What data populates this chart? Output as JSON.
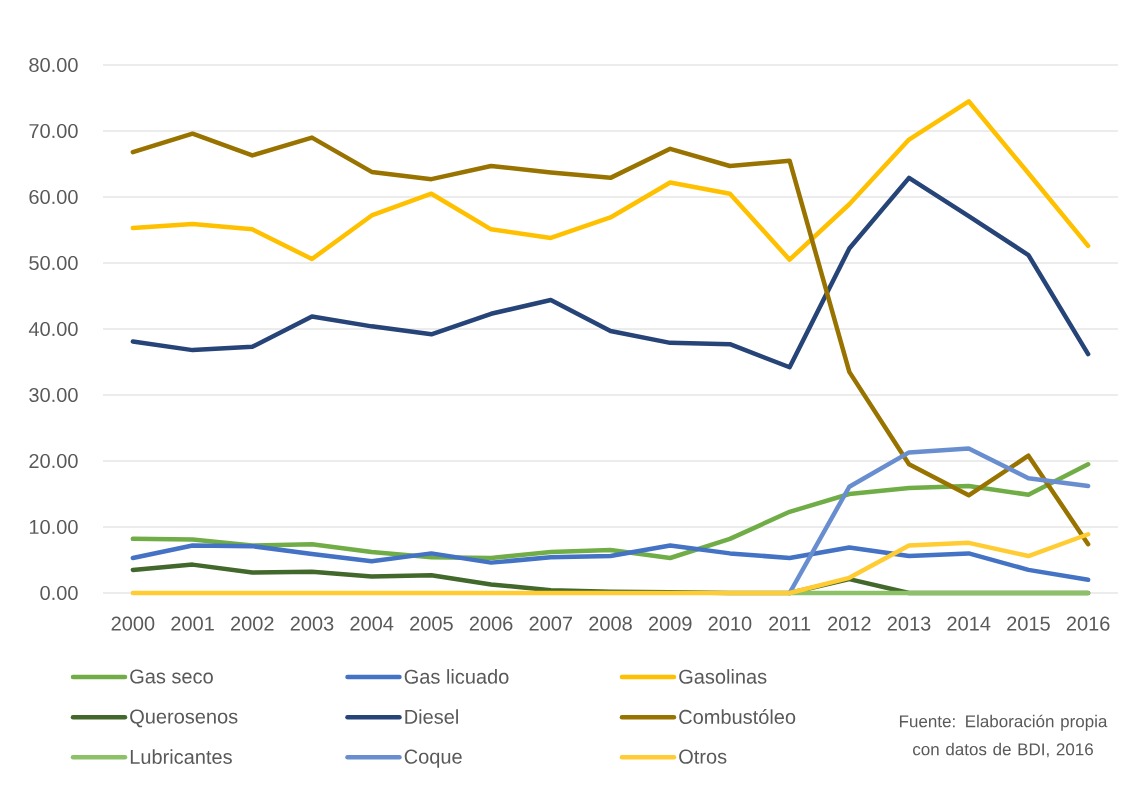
{
  "chart_data": {
    "type": "line",
    "categories": [
      "2000",
      "2001",
      "2002",
      "2003",
      "2004",
      "2005",
      "2006",
      "2007",
      "2008",
      "2009",
      "2010",
      "2011",
      "2012",
      "2013",
      "2014",
      "2015",
      "2016"
    ],
    "series": [
      {
        "name": "Gas seco",
        "color": "#70ad47",
        "values": [
          8.2,
          8.1,
          7.2,
          7.4,
          6.2,
          5.4,
          5.3,
          6.2,
          6.5,
          5.3,
          8.2,
          12.3,
          15.0,
          15.9,
          16.2,
          14.9,
          19.5
        ]
      },
      {
        "name": "Gas licuado",
        "color": "#4472c4",
        "values": [
          5.3,
          7.2,
          7.1,
          5.9,
          4.8,
          6.0,
          4.6,
          5.4,
          5.6,
          7.2,
          6.0,
          5.3,
          6.9,
          5.6,
          6.0,
          3.5,
          2.0
        ]
      },
      {
        "name": "Gasolinas",
        "color": "#ffc000",
        "values": [
          55.3,
          55.9,
          55.1,
          50.6,
          57.2,
          60.5,
          55.1,
          53.8,
          56.9,
          62.2,
          60.5,
          50.5,
          58.9,
          68.7,
          74.5,
          63.6,
          52.6
        ]
      },
      {
        "name": "Querosenos",
        "color": "#43682b",
        "values": [
          3.5,
          4.3,
          3.1,
          3.2,
          2.5,
          2.7,
          1.3,
          0.4,
          0.2,
          0.1,
          0,
          0,
          2.1,
          0,
          0,
          0,
          0
        ]
      },
      {
        "name": "Diesel",
        "color": "#264478",
        "values": [
          38.1,
          36.8,
          37.3,
          41.9,
          40.4,
          39.2,
          42.3,
          44.4,
          39.7,
          37.9,
          37.7,
          34.2,
          52.2,
          62.9,
          57.1,
          51.2,
          36.2
        ]
      },
      {
        "name": "Combustóleo",
        "color": "#997300",
        "values": [
          66.8,
          69.6,
          66.3,
          69.0,
          63.8,
          62.7,
          64.7,
          63.7,
          62.9,
          67.3,
          64.7,
          65.5,
          33.5,
          19.5,
          14.8,
          20.8,
          7.4
        ]
      },
      {
        "name": "Lubricantes",
        "color": "#8cc168",
        "values": [
          null,
          null,
          null,
          null,
          null,
          null,
          null,
          null,
          null,
          null,
          null,
          0,
          0,
          0,
          0,
          0,
          0
        ]
      },
      {
        "name": "Coque",
        "color": "#698ed0",
        "values": [
          null,
          null,
          null,
          null,
          null,
          null,
          null,
          null,
          null,
          null,
          null,
          0,
          16.1,
          21.3,
          21.9,
          17.4,
          16.2
        ]
      },
      {
        "name": "Otros",
        "color": "#ffcd33",
        "values": [
          0,
          0,
          0,
          0,
          0,
          0,
          0,
          0,
          0,
          0,
          0,
          0,
          2.3,
          7.2,
          7.6,
          5.6,
          8.9
        ]
      }
    ],
    "ylim": [
      0,
      80
    ],
    "yticks": [
      {
        "value": 0,
        "label": "0.00"
      },
      {
        "value": 10,
        "label": "10.00"
      },
      {
        "value": 20,
        "label": "20.00"
      },
      {
        "value": 30,
        "label": "30.00"
      },
      {
        "value": 40,
        "label": "40.00"
      },
      {
        "value": 50,
        "label": "50.00"
      },
      {
        "value": 60,
        "label": "60.00"
      },
      {
        "value": 70,
        "label": "70.00"
      },
      {
        "value": 80,
        "label": "80.00"
      }
    ],
    "grid": "y",
    "legend": "bottom",
    "marker": "none",
    "line_style": "solid",
    "annotations": [
      "Fuente: Elaboración propia con datos de BDI, 2016"
    ]
  }
}
